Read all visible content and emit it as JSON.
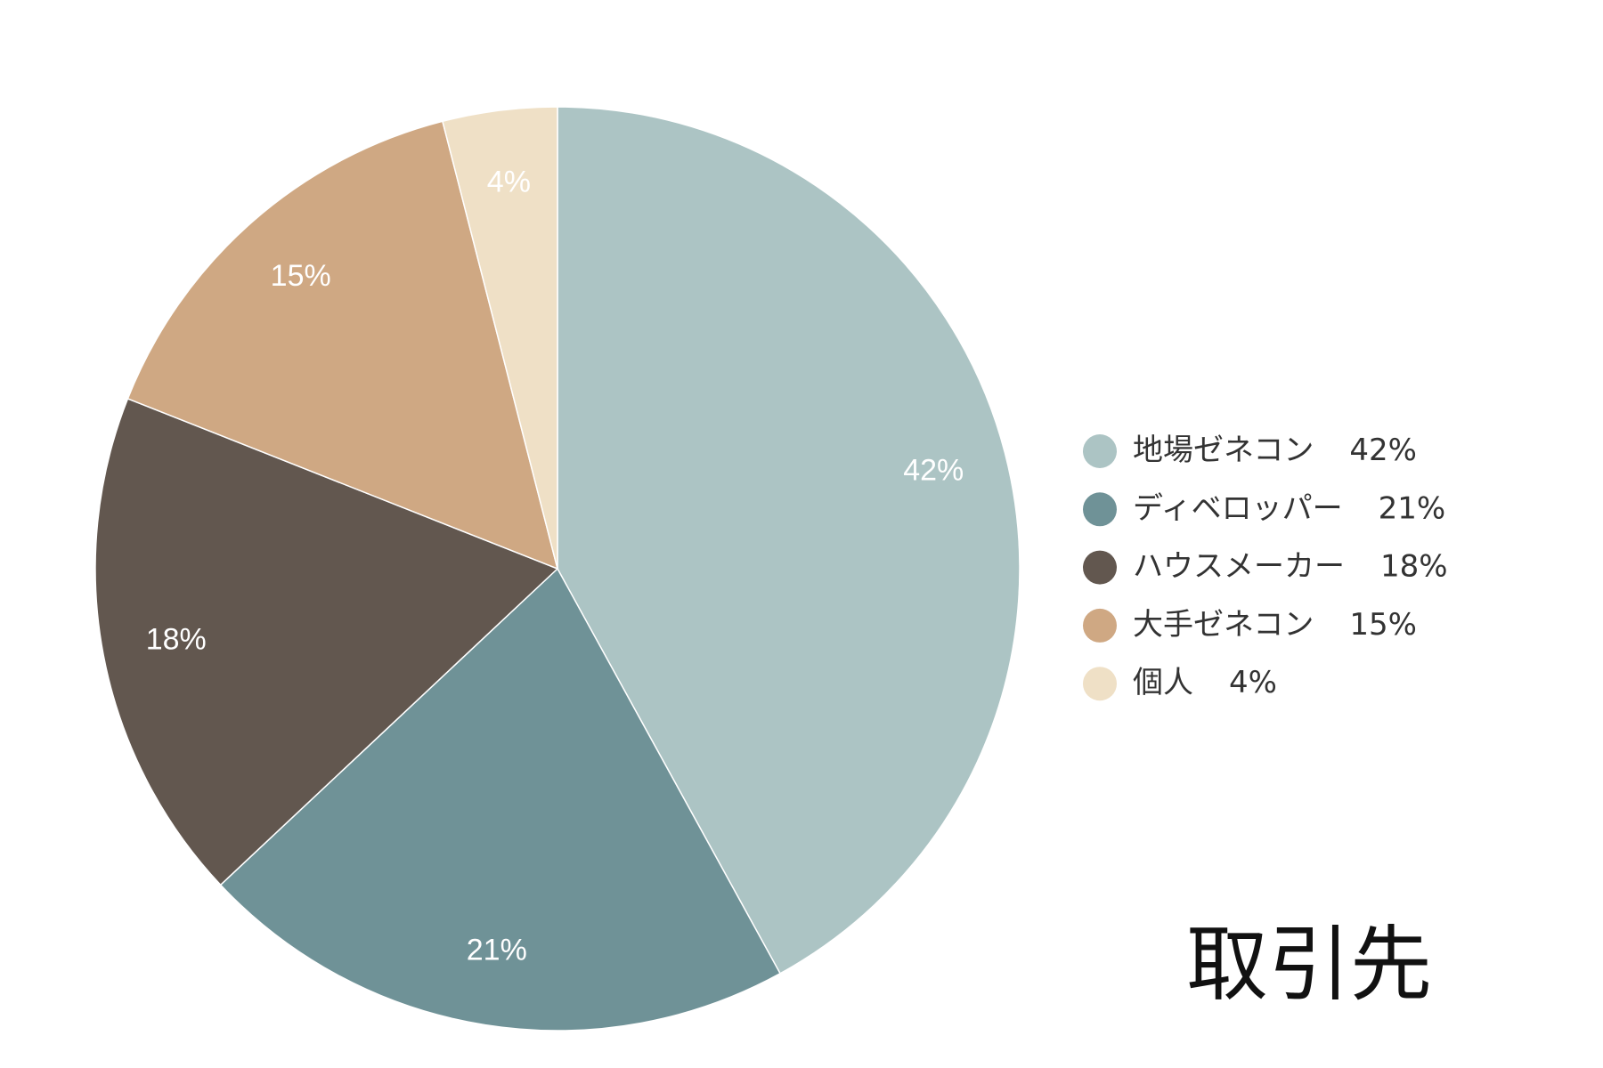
{
  "chart_data": {
    "type": "pie",
    "title": "取引先",
    "categories": [
      "地場ゼネコン",
      "ディベロッパー",
      "ハウスメーカー",
      "大手ゼネコン",
      "個人"
    ],
    "values": [
      42,
      21,
      18,
      15,
      4
    ],
    "value_labels": [
      "42%",
      "21%",
      "18%",
      "15%",
      "4%"
    ],
    "colors": [
      "#acc4c4",
      "#6f9297",
      "#62574f",
      "#cfa883",
      "#efe0c6"
    ],
    "legend": "right"
  }
}
